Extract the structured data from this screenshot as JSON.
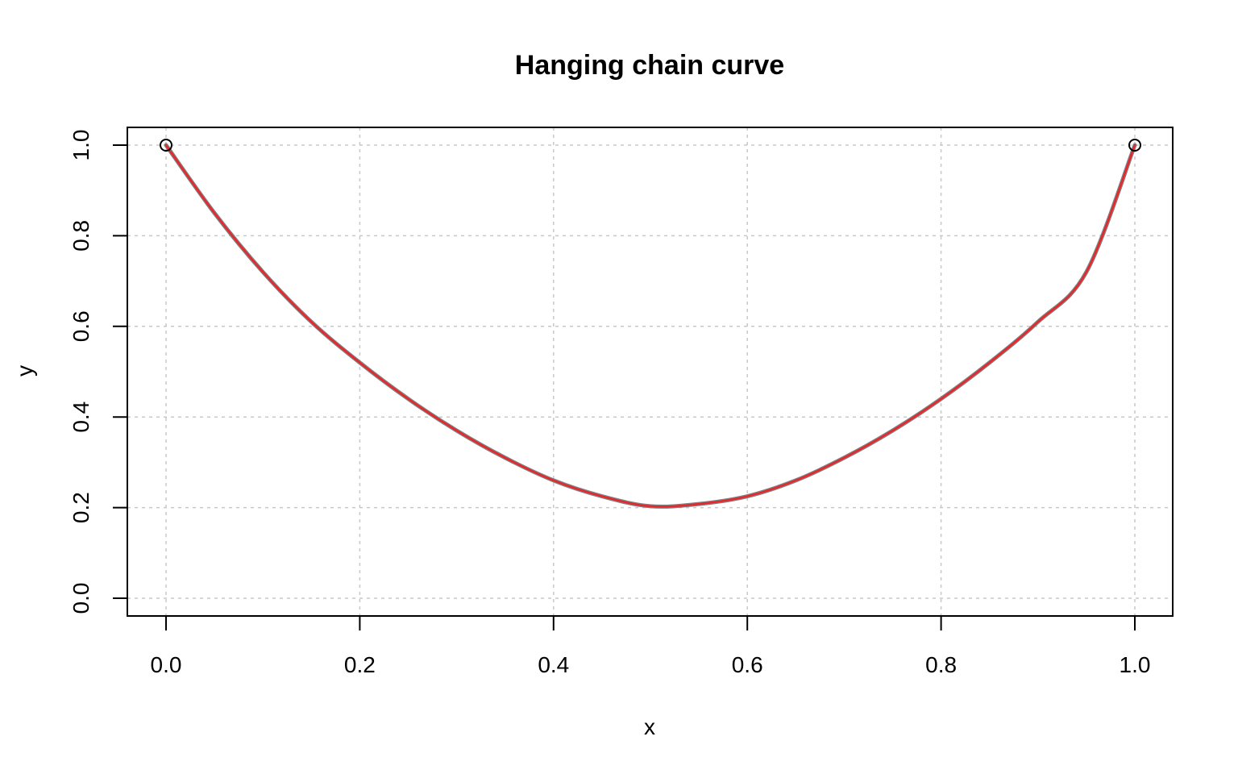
{
  "chart_data": {
    "type": "line",
    "title": "Hanging chain curve",
    "xlabel": "x",
    "ylabel": "y",
    "xlim": [
      0.0,
      1.0
    ],
    "ylim": [
      0.0,
      1.0
    ],
    "xticks": [
      "0.0",
      "0.2",
      "0.4",
      "0.6",
      "0.8",
      "1.0"
    ],
    "yticks": [
      "0.0",
      "0.2",
      "0.4",
      "0.6",
      "0.8",
      "1.0"
    ],
    "grid": true,
    "series": [
      {
        "color": "#808080",
        "x": [
          0.0,
          0.05,
          0.1,
          0.15,
          0.2,
          0.25,
          0.3,
          0.35,
          0.4,
          0.45,
          0.5,
          0.55,
          0.6,
          0.65,
          0.7,
          0.75,
          0.8,
          0.85,
          0.9,
          0.95,
          1.0
        ],
        "y": [
          1.0,
          0.85,
          0.72,
          0.61,
          0.52,
          0.44,
          0.37,
          0.31,
          0.26,
          0.225,
          0.203,
          0.208,
          0.225,
          0.26,
          0.31,
          0.37,
          0.44,
          0.52,
          0.61,
          0.72,
          1.0
        ]
      },
      {
        "color": "#e8262b",
        "x": [
          0.0,
          0.05,
          0.1,
          0.15,
          0.2,
          0.25,
          0.3,
          0.35,
          0.4,
          0.45,
          0.5,
          0.55,
          0.6,
          0.65,
          0.7,
          0.75,
          0.8,
          0.85,
          0.9,
          0.95,
          1.0
        ],
        "y": [
          1.0,
          0.85,
          0.72,
          0.61,
          0.52,
          0.44,
          0.37,
          0.31,
          0.26,
          0.225,
          0.203,
          0.208,
          0.225,
          0.26,
          0.31,
          0.37,
          0.44,
          0.52,
          0.61,
          0.72,
          1.0
        ]
      }
    ],
    "points": [
      {
        "x": 0.0,
        "y": 1.0
      },
      {
        "x": 1.0,
        "y": 1.0
      }
    ]
  }
}
